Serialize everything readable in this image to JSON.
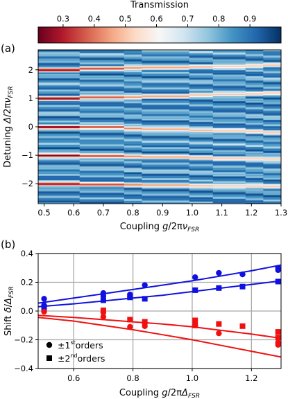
{
  "chart_data": [
    {
      "type": "heatmap",
      "panel_label": "(a)",
      "colorbar": {
        "title": "Transmission",
        "range": [
          0.22,
          1.0
        ],
        "ticks": [
          "0.3",
          "0.4",
          "0.5",
          "0.6",
          "0.7",
          "0.8",
          "0.9"
        ],
        "tick_values": [
          0.3,
          0.4,
          0.5,
          0.6,
          0.7,
          0.8,
          0.9
        ],
        "colors": [
          "#67001f",
          "#b2182b",
          "#d6604d",
          "#f4a582",
          "#fddbc7",
          "#f7f7f7",
          "#d1e5f0",
          "#92c5de",
          "#4393c3",
          "#2166ac",
          "#053061"
        ]
      },
      "xlabel": "Coupling g/2πν_FSR",
      "xlabel_parts": [
        "Coupling ",
        "g",
        "/2π",
        "ν",
        "FSR"
      ],
      "ylabel": "Detuning Δ/2πν_FSR",
      "ylabel_parts": [
        "Detuning ",
        "Δ",
        "/2π",
        "ν",
        "FSR"
      ],
      "xlim": [
        0.48,
        1.3
      ],
      "ylim": [
        -2.7,
        2.7
      ],
      "xticks": [
        "0.5",
        "0.6",
        "0.7",
        "0.8",
        "0.9",
        "1.0",
        "1.1",
        "1.2",
        "1.3"
      ],
      "xtick_values": [
        0.5,
        0.6,
        0.7,
        0.8,
        0.9,
        1.0,
        1.1,
        1.2,
        1.3
      ],
      "yticks": [
        "−2",
        "−1",
        "0",
        "1",
        "2"
      ],
      "ytick_values": [
        -2,
        -1,
        0,
        1,
        2
      ],
      "columns": [
        {
          "x0": 0.48,
          "x1": 0.62,
          "g": 0.5
        },
        {
          "x0": 0.62,
          "x1": 0.77,
          "g": 0.7
        },
        {
          "x0": 0.77,
          "x1": 0.83,
          "g": 0.79
        },
        {
          "x0": 0.83,
          "x1": 0.99,
          "g": 0.84
        },
        {
          "x0": 0.99,
          "x1": 1.07,
          "g": 1.01
        },
        {
          "x0": 1.07,
          "x1": 1.18,
          "g": 1.09
        },
        {
          "x0": 1.18,
          "x1": 1.24,
          "g": 1.17
        },
        {
          "x0": 1.24,
          "x1": 1.3,
          "g": 1.29
        }
      ],
      "dips": {
        "description_values": "resonance dip centres per column (Δ/2πν_FSR) for orders m",
        "orders": [
          -2,
          -1,
          0,
          1,
          2
        ],
        "centers": [
          [
            -2.0,
            -1.0,
            0.0,
            1.0,
            2.0
          ],
          [
            -2.02,
            -1.02,
            0.0,
            1.05,
            2.06
          ],
          [
            -2.03,
            -1.04,
            -0.05,
            1.05,
            2.08
          ],
          [
            -2.04,
            -1.05,
            -0.08,
            1.08,
            2.09
          ],
          [
            -2.06,
            -1.08,
            -0.12,
            1.13,
            2.12
          ],
          [
            -2.07,
            -1.1,
            -0.14,
            1.15,
            2.14
          ],
          [
            -2.08,
            -1.1,
            -0.16,
            1.17,
            2.15
          ],
          [
            -2.09,
            -1.13,
            -0.2,
            1.2,
            2.18
          ]
        ],
        "min_transmission": [
          0.25,
          0.35,
          0.42,
          0.45,
          0.48,
          0.5,
          0.5,
          0.5
        ],
        "width": 0.07
      }
    },
    {
      "type": "scatter",
      "panel_label": "(b)",
      "xlabel": "Coupling g/2πΔ_FSR",
      "xlabel_parts": [
        "Coupling ",
        "g",
        "/2π",
        "Δ",
        "FSR"
      ],
      "ylabel": "Shift δ/Δ_FSR",
      "ylabel_parts": [
        "Shift ",
        "δ",
        "/",
        "Δ",
        "FSR"
      ],
      "xlim": [
        0.48,
        1.3
      ],
      "ylim": [
        -0.4,
        0.4
      ],
      "xticks": [
        "0.6",
        "0.8",
        "1.0",
        "1.2"
      ],
      "xtick_values": [
        0.6,
        0.8,
        1.0,
        1.2
      ],
      "yticks": [
        "−0.4",
        "−0.2",
        "0.0",
        "0.2",
        "0.4"
      ],
      "ytick_values": [
        -0.4,
        -0.2,
        0.0,
        0.2,
        0.4
      ],
      "grid": true,
      "colors": {
        "blue": "#1010e0",
        "red": "#f01010"
      },
      "series": [
        {
          "marker": "circle",
          "color": "blue",
          "x": [
            0.5,
            0.5,
            0.7,
            0.7,
            0.79,
            0.79,
            0.84,
            1.01,
            1.09,
            1.17,
            1.29,
            1.29
          ],
          "y": [
            0.085,
            0.04,
            0.125,
            0.105,
            0.115,
            0.1,
            0.18,
            0.235,
            0.265,
            0.255,
            0.3,
            0.285
          ]
        },
        {
          "marker": "square",
          "color": "blue",
          "x": [
            0.5,
            0.7,
            0.79,
            0.84,
            1.01,
            1.09,
            1.17,
            1.29
          ],
          "y": [
            0.02,
            0.075,
            0.095,
            0.085,
            0.145,
            0.16,
            0.17,
            0.205
          ]
        },
        {
          "marker": "circle",
          "color": "red",
          "x": [
            0.5,
            0.7,
            0.7,
            0.79,
            0.84,
            0.84,
            1.01,
            1.09,
            1.29,
            1.29
          ],
          "y": [
            -0.005,
            -0.01,
            -0.04,
            -0.11,
            -0.085,
            -0.105,
            -0.1,
            -0.155,
            -0.22,
            -0.235
          ]
        },
        {
          "marker": "square",
          "color": "red",
          "x": [
            0.7,
            0.79,
            0.84,
            1.01,
            1.01,
            1.09,
            1.17,
            1.29,
            1.29
          ],
          "y": [
            0.005,
            -0.06,
            -0.075,
            -0.065,
            -0.1,
            -0.09,
            -0.105,
            -0.145,
            -0.185
          ]
        }
      ],
      "lines": [
        {
          "color": "blue",
          "x": [
            0.48,
            0.6,
            0.7,
            0.8,
            0.9,
            1.0,
            1.1,
            1.2,
            1.3
          ],
          "y": [
            0.055,
            0.09,
            0.12,
            0.15,
            0.18,
            0.21,
            0.245,
            0.28,
            0.32
          ]
        },
        {
          "color": "blue",
          "x": [
            0.48,
            0.6,
            0.7,
            0.8,
            0.9,
            1.0,
            1.1,
            1.2,
            1.3
          ],
          "y": [
            0.03,
            0.05,
            0.07,
            0.09,
            0.11,
            0.135,
            0.16,
            0.185,
            0.21
          ]
        },
        {
          "color": "red",
          "x": [
            0.48,
            0.6,
            0.7,
            0.8,
            0.9,
            1.0,
            1.1,
            1.2,
            1.3
          ],
          "y": [
            -0.03,
            -0.045,
            -0.06,
            -0.075,
            -0.09,
            -0.11,
            -0.135,
            -0.16,
            -0.19
          ]
        },
        {
          "color": "red",
          "x": [
            0.48,
            0.6,
            0.7,
            0.8,
            0.9,
            1.0,
            1.1,
            1.2,
            1.3
          ],
          "y": [
            -0.045,
            -0.07,
            -0.1,
            -0.13,
            -0.165,
            -0.2,
            -0.24,
            -0.28,
            -0.32
          ]
        }
      ],
      "legend": {
        "entries": [
          {
            "marker": "circle",
            "prefix": "±1",
            "sup": "st",
            "suffix": "orders"
          },
          {
            "marker": "square",
            "prefix": "±2",
            "sup": "nd",
            "suffix": "orders"
          }
        ]
      }
    }
  ]
}
